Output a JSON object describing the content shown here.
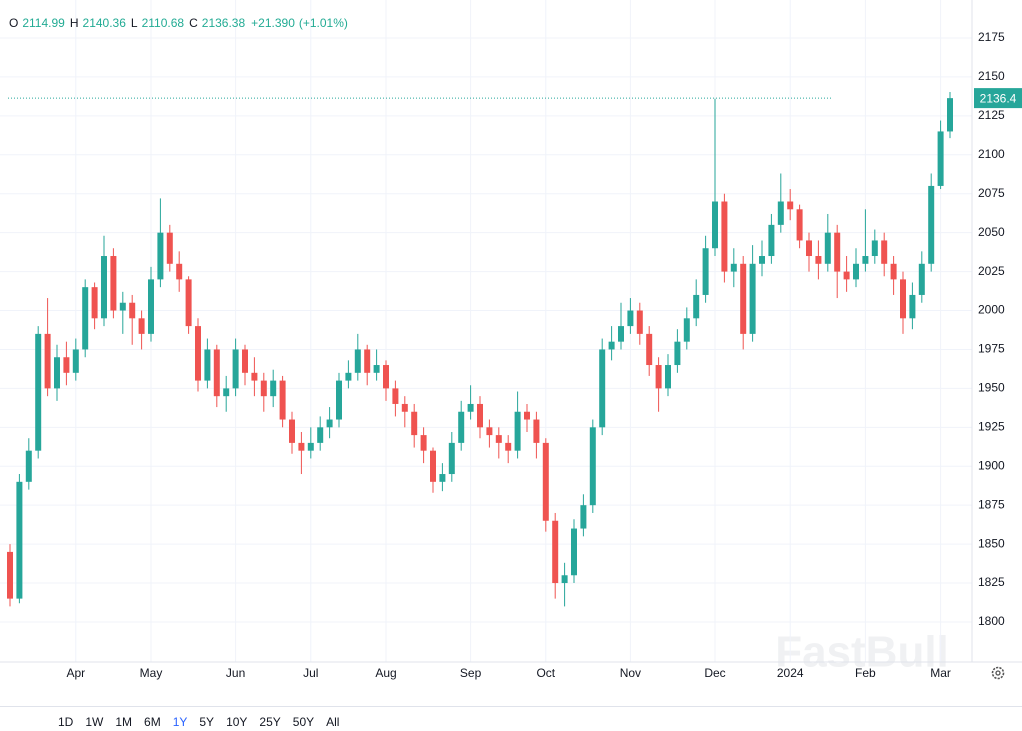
{
  "chart_data": {
    "type": "candlestick",
    "header": {
      "ohlc": [
        {
          "label": "O",
          "value": "2114.99"
        },
        {
          "label": "H",
          "value": "2140.36"
        },
        {
          "label": "L",
          "value": "2110.68"
        },
        {
          "label": "C",
          "value": "2136.38"
        }
      ],
      "change": "+21.390",
      "change_pct": "(+1.01%)"
    },
    "categories": [
      null,
      null,
      null,
      null,
      null,
      null,
      null,
      "Apr",
      null,
      null,
      null,
      null,
      null,
      null,
      null,
      "May",
      null,
      null,
      null,
      null,
      null,
      null,
      null,
      null,
      "Jun",
      null,
      null,
      null,
      null,
      null,
      null,
      null,
      "Jul",
      null,
      null,
      null,
      null,
      null,
      null,
      null,
      "Aug",
      null,
      null,
      null,
      null,
      null,
      null,
      null,
      null,
      "Sep",
      null,
      null,
      null,
      null,
      null,
      null,
      null,
      "Oct",
      null,
      null,
      null,
      null,
      null,
      null,
      null,
      null,
      "Nov",
      null,
      null,
      null,
      null,
      null,
      null,
      null,
      null,
      "Dec",
      null,
      null,
      null,
      null,
      null,
      null,
      null,
      "2024",
      null,
      null,
      null,
      null,
      null,
      null,
      null,
      "Feb",
      null,
      null,
      null,
      null,
      null,
      null,
      null,
      "Mar",
      null
    ],
    "open": [
      1845,
      1815,
      1890,
      1910,
      1985,
      1950,
      1970,
      1960,
      1975,
      2015,
      1995,
      2035,
      2000,
      2005,
      1995,
      1985,
      2020,
      2050,
      2030,
      2020,
      1990,
      1955,
      1975,
      1945,
      1950,
      1975,
      1960,
      1955,
      1945,
      1955,
      1930,
      1915,
      1910,
      1915,
      1925,
      1930,
      1955,
      1960,
      1975,
      1960,
      1965,
      1950,
      1940,
      1935,
      1920,
      1910,
      1890,
      1895,
      1915,
      1935,
      1940,
      1925,
      1920,
      1915,
      1910,
      1935,
      1930,
      1915,
      1865,
      1825,
      1830,
      1860,
      1875,
      1925,
      1975,
      1980,
      1990,
      2000,
      1985,
      1965,
      1950,
      1965,
      1980,
      1995,
      2010,
      2040,
      2070,
      2025,
      2030,
      1985,
      2030,
      2035,
      2055,
      2070,
      2065,
      2045,
      2035,
      2030,
      2050,
      2025,
      2020,
      2030,
      2035,
      2045,
      2030,
      2020,
      1995,
      2010,
      2030,
      2080,
      2114.99
    ],
    "high": [
      1850,
      1895,
      1918,
      1990,
      2008,
      1978,
      1980,
      1982,
      2020,
      2018,
      2048,
      2040,
      2012,
      2010,
      2000,
      2028,
      2072,
      2055,
      2038,
      2022,
      1995,
      1982,
      1978,
      1958,
      1982,
      1978,
      1970,
      1960,
      1962,
      1958,
      1935,
      1922,
      1925,
      1932,
      1938,
      1960,
      1968,
      1985,
      1978,
      1975,
      1968,
      1955,
      1945,
      1940,
      1925,
      1912,
      1902,
      1922,
      1942,
      1952,
      1945,
      1930,
      1925,
      1920,
      1948,
      1940,
      1935,
      1918,
      1870,
      1838,
      1866,
      1882,
      1930,
      1982,
      1990,
      2005,
      2008,
      2005,
      1990,
      1970,
      1972,
      1988,
      2002,
      2020,
      2048,
      2136,
      2075,
      2040,
      2035,
      2042,
      2045,
      2062,
      2088,
      2078,
      2068,
      2050,
      2045,
      2062,
      2055,
      2035,
      2040,
      2065,
      2052,
      2050,
      2035,
      2025,
      2018,
      2038,
      2088,
      2122,
      2140.36
    ],
    "low": [
      1810,
      1812,
      1885,
      1905,
      1945,
      1942,
      1952,
      1955,
      1970,
      1988,
      1990,
      1995,
      1985,
      1978,
      1975,
      1980,
      2015,
      2025,
      2012,
      1985,
      1948,
      1950,
      1938,
      1935,
      1945,
      1952,
      1945,
      1935,
      1938,
      1925,
      1908,
      1895,
      1905,
      1910,
      1918,
      1925,
      1950,
      1955,
      1952,
      1955,
      1942,
      1932,
      1925,
      1912,
      1902,
      1883,
      1884,
      1890,
      1910,
      1930,
      1918,
      1912,
      1905,
      1902,
      1905,
      1922,
      1905,
      1858,
      1815,
      1810,
      1825,
      1855,
      1870,
      1920,
      1968,
      1975,
      1985,
      1978,
      1958,
      1935,
      1945,
      1960,
      1975,
      1990,
      2005,
      2035,
      2018,
      2015,
      1975,
      1980,
      2022,
      2030,
      2050,
      2058,
      2040,
      2025,
      2020,
      2025,
      2008,
      2012,
      2015,
      2025,
      2030,
      2022,
      2010,
      1985,
      1988,
      2005,
      2025,
      2078,
      2110.68
    ],
    "close": [
      1815,
      1890,
      1910,
      1985,
      1950,
      1970,
      1960,
      1975,
      2015,
      1995,
      2035,
      2000,
      2005,
      1995,
      1985,
      2020,
      2050,
      2030,
      2020,
      1990,
      1955,
      1975,
      1945,
      1950,
      1975,
      1960,
      1955,
      1945,
      1955,
      1930,
      1915,
      1910,
      1915,
      1925,
      1930,
      1955,
      1960,
      1975,
      1960,
      1965,
      1950,
      1940,
      1935,
      1920,
      1910,
      1890,
      1895,
      1915,
      1935,
      1940,
      1925,
      1920,
      1915,
      1910,
      1935,
      1930,
      1915,
      1865,
      1825,
      1830,
      1860,
      1875,
      1925,
      1975,
      1980,
      1990,
      2000,
      1985,
      1965,
      1950,
      1965,
      1980,
      1995,
      2010,
      2040,
      2070,
      2025,
      2030,
      1985,
      2030,
      2035,
      2055,
      2070,
      2065,
      2045,
      2035,
      2030,
      2050,
      2025,
      2020,
      2030,
      2035,
      2045,
      2030,
      2020,
      1995,
      2010,
      2030,
      2080,
      2115,
      2136.38
    ],
    "up_color": "#26a69a",
    "down_color": "#ef5350",
    "ylim": [
      1774.3,
      2199.4
    ],
    "yticks": [
      1800,
      1825,
      1850,
      1875,
      1900,
      1925,
      1950,
      1975,
      2000,
      2025,
      2050,
      2075,
      2100,
      2125,
      2150,
      2175
    ],
    "grid": true,
    "last_price": 2136.4,
    "watermark": "FastBull",
    "periods": [
      "1D",
      "1W",
      "1M",
      "6M",
      "1Y",
      "5Y",
      "10Y",
      "25Y",
      "50Y",
      "All"
    ],
    "selected_period": 4
  }
}
